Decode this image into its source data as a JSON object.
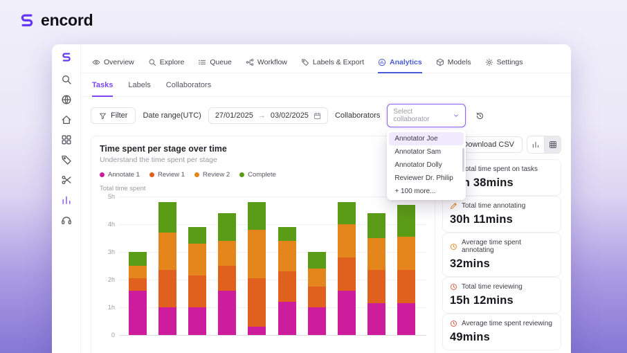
{
  "brand": {
    "name": "encord",
    "logo_color": "#6438f5"
  },
  "colors": {
    "accent_purple": "#7b46f5",
    "accent_blue": "#4a5bd6",
    "select_border": "#8a63f2",
    "dropdown_highlight": "#efeafd"
  },
  "sidebar": {
    "icons": [
      {
        "name": "encord-logo",
        "icon": "logo"
      },
      {
        "name": "search",
        "icon": "search"
      },
      {
        "name": "globe",
        "icon": "globe"
      },
      {
        "name": "home",
        "icon": "home"
      },
      {
        "name": "apps",
        "icon": "apps"
      },
      {
        "name": "annotate",
        "icon": "tag"
      },
      {
        "name": "scissors",
        "icon": "scissors"
      },
      {
        "name": "analytics",
        "icon": "chartbars",
        "active": true
      },
      {
        "name": "support",
        "icon": "headset"
      }
    ]
  },
  "nav": {
    "tabs": [
      {
        "label": "Overview",
        "icon": "eye"
      },
      {
        "label": "Explore",
        "icon": "search"
      },
      {
        "label": "Queue",
        "icon": "list"
      },
      {
        "label": "Workflow",
        "icon": "workflow"
      },
      {
        "label": "Labels & Export",
        "icon": "tag"
      },
      {
        "label": "Analytics",
        "icon": "analytics",
        "active": true
      },
      {
        "label": "Models",
        "icon": "models"
      },
      {
        "label": "Settings",
        "icon": "settings"
      }
    ]
  },
  "subtabs": {
    "items": [
      {
        "label": "Tasks",
        "active": true
      },
      {
        "label": "Labels"
      },
      {
        "label": "Collaborators"
      }
    ]
  },
  "filters": {
    "filter_label": "Filter",
    "date_range_label": "Date range(UTC)",
    "date_from": "27/01/2025",
    "date_arrow": "→",
    "date_to": "03/02/2025",
    "collaborators_label": "Collaborators",
    "select_placeholder": "Select collaborator",
    "dropdown": {
      "options": [
        "Annotator Joe",
        "Annotator Sam",
        "Annotator Dolly",
        "Reviewer Dr. Philip",
        "+ 100 more..."
      ],
      "highlighted": "Annotator Joe"
    }
  },
  "chart_section": {
    "title": "Time spent per stage over time",
    "subtitle": "Understand the time spent per stage",
    "axis_caption": "Total time spent",
    "download_csv_label": "Download CSV"
  },
  "stats": [
    {
      "title": "Total time spent on tasks",
      "value": "46h 38mins",
      "icon": "clock",
      "icon_color": "#3f3f4a"
    },
    {
      "title": "Total time annotating",
      "value": "30h 11mins",
      "icon": "pencil",
      "icon_color": "#e0831c"
    },
    {
      "title": "Average time spent annotating",
      "value": "32mins",
      "icon": "clock",
      "icon_color": "#e0831c"
    },
    {
      "title": "Total time reviewing",
      "value": "15h 12mins",
      "icon": "clock",
      "icon_color": "#d9503a"
    },
    {
      "title": "Average time spent reviewing",
      "value": "49mins",
      "icon": "clock",
      "icon_color": "#d9503a"
    }
  ],
  "chart_data": {
    "type": "bar",
    "stacked": true,
    "title": "Time spent per stage over time",
    "ylabel": "Total time spent",
    "ylim": [
      0,
      5
    ],
    "yticks_top_to_bottom": [
      "5h",
      "4h",
      "3h",
      "2h",
      "1h",
      "0"
    ],
    "grid": true,
    "legend_position": "top",
    "categories": [
      "",
      "",
      "",
      "",
      "",
      "",
      "",
      "",
      "",
      ""
    ],
    "series": [
      {
        "name": "Annotate 1",
        "color": "#ce1d9c",
        "values": [
          1.6,
          1.0,
          1.0,
          1.6,
          0.3,
          1.2,
          1.0,
          1.6,
          1.15,
          1.15
        ]
      },
      {
        "name": "Review 1",
        "color": "#e0601e",
        "values": [
          0.45,
          1.35,
          1.15,
          0.9,
          1.75,
          1.1,
          0.75,
          1.2,
          1.2,
          1.2
        ]
      },
      {
        "name": "Review 2",
        "color": "#e5861c",
        "values": [
          0.45,
          1.35,
          1.15,
          0.9,
          1.75,
          1.1,
          0.65,
          1.2,
          1.15,
          1.2
        ]
      },
      {
        "name": "Complete",
        "color": "#5b9c16",
        "values": [
          0.5,
          1.1,
          0.6,
          1.0,
          1.0,
          0.5,
          0.6,
          0.8,
          0.9,
          1.15
        ]
      }
    ]
  }
}
